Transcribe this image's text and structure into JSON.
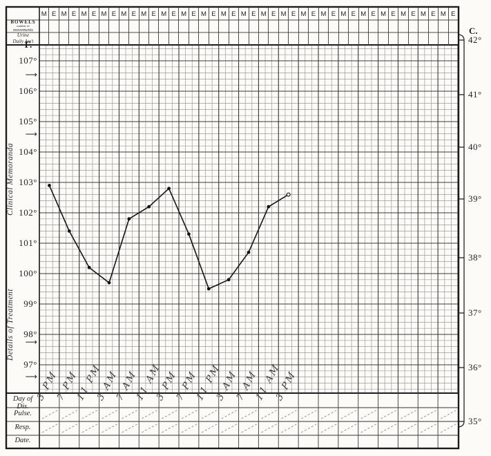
{
  "colors": {
    "paper": "#fcfbf8",
    "ink": "#1f1f1f",
    "grid_fine": "#9b9b9b",
    "grid_heavy": "#3a3a3a",
    "curve": "#141414",
    "handwriting": "#3c3c3c"
  },
  "header": {
    "me_cells": [
      "M",
      "E",
      "M",
      "E",
      "M",
      "E",
      "M",
      "E",
      "M",
      "E",
      "M",
      "E",
      "M",
      "E",
      "M",
      "E",
      "M",
      "E",
      "M",
      "E",
      "M",
      "E",
      "M",
      "E",
      "M",
      "E",
      "M",
      "E",
      "M",
      "E",
      "M",
      "E",
      "M",
      "E",
      "M",
      "E",
      "M",
      "E",
      "M",
      "E",
      "M",
      "E"
    ]
  },
  "left_panel": {
    "bowels": {
      "line1": "BOWELS",
      "line2": "number of",
      "line3": "movements"
    },
    "urine": {
      "line1": "Urine",
      "line2": "Daily Am't"
    },
    "f_unit": "F.",
    "f_scale": {
      "labels": [
        "107°",
        "106°",
        "105°",
        "104°",
        "103°",
        "102°",
        "101°",
        "100°",
        "99°",
        "98°",
        "97°"
      ],
      "arrow_glyph": "⟶"
    },
    "clinical_memoranda": "Clinical Memoranda",
    "details_of_treatment": "Details of Treatment",
    "rows": [
      "Day of Dis.",
      "Pulse.",
      "Resp.",
      "Date."
    ]
  },
  "right_scale": {
    "unit": "C.",
    "labels": [
      "42°",
      "41°",
      "40°",
      "39°",
      "38°",
      "37°",
      "36°",
      "35°"
    ]
  },
  "chart_data": {
    "type": "line",
    "categories": [
      "3 PM",
      "7 PM",
      "11 PM",
      "3 AM",
      "7 AM",
      "11 AM",
      "3 PM",
      "7 PM",
      "11 PM",
      "3 AM",
      "7 AM",
      "11 AM",
      "3 PM"
    ],
    "series": [
      {
        "name": "temperature_f",
        "values": [
          102.9,
          101.4,
          100.2,
          99.7,
          101.8,
          102.2,
          102.8,
          101.3,
          99.5,
          99.8,
          100.7,
          102.2,
          102.6
        ]
      }
    ],
    "ylabel_left": "F.",
    "ylabel_right": "C.",
    "y_axis_fahrenheit": [
      107,
      106,
      105,
      104,
      103,
      102,
      101,
      100,
      99,
      98,
      97
    ],
    "y_axis_celsius": [
      42,
      41,
      40,
      39,
      38,
      37,
      36,
      35
    ],
    "ylim_fahrenheit": [
      95.4,
      107.5
    ],
    "grid": true,
    "legend": false,
    "marker": "dot"
  }
}
